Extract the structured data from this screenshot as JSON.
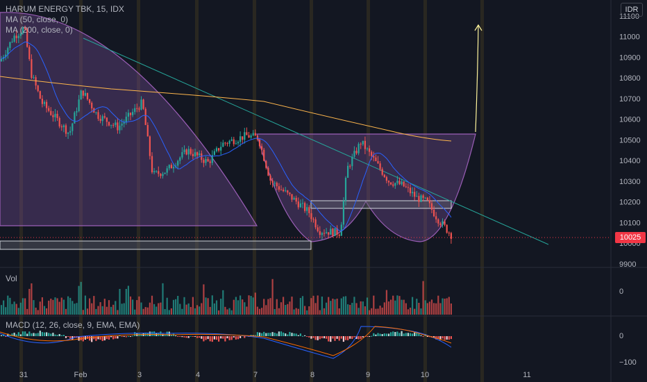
{
  "header": {
    "symbol_title": "HARUM ENERGY TBK, 15, IDX",
    "indicators": [
      "MA (50, close, 0)",
      "MA (200, close, 0)"
    ]
  },
  "price_axis": {
    "currency": "IDR",
    "ticks": [
      11100,
      11000,
      10900,
      10800,
      10700,
      10600,
      10500,
      10400,
      10300,
      10200,
      10100,
      10000,
      9900
    ],
    "last_price": "10025"
  },
  "volume_pane": {
    "label": "Vol",
    "axis_ticks": [
      "0"
    ]
  },
  "macd_pane": {
    "label": "MACD (12, 26, close, 9, EMA, EMA)",
    "axis_ticks": [
      "0",
      "−100"
    ]
  },
  "time_axis": {
    "labels": [
      "31",
      "Feb",
      "3",
      "4",
      "7",
      "8",
      "9",
      "10",
      "11"
    ]
  },
  "colors": {
    "background": "#131722",
    "up_candle": "#26a69a",
    "down_candle": "#ef5350",
    "ma50": "#2962ff",
    "ma200": "#ffb74d",
    "trendline": "#26a69a",
    "pattern_fill": "#7b4f9e",
    "price_tag": "#f23645"
  }
}
